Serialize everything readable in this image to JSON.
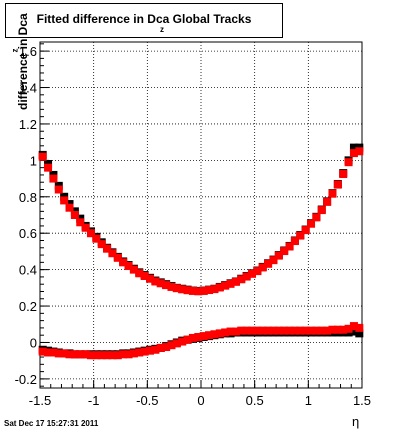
{
  "header": {
    "title": "Fitted difference in Dca",
    "title_subscript": "z",
    "title_suffix": "Global Tracks"
  },
  "footer": {
    "timestamp": "Sat Dec 17 15:27:31 2011"
  },
  "chart_data": {
    "type": "scatter",
    "xlabel": "η",
    "ylabel": "difference in Dca",
    "ylabel_subscript": "z",
    "xlim": [
      -1.5,
      1.5
    ],
    "ylim": [
      -0.25,
      1.65
    ],
    "x_ticks": [
      -1.5,
      -1,
      -0.5,
      0,
      0.5,
      1,
      1.5
    ],
    "y_ticks": [
      -0.2,
      0,
      0.2,
      0.4,
      0.6,
      0.8,
      1,
      1.2,
      1.4,
      1.6
    ],
    "x_tick_labels": [
      "-1.5",
      "-1",
      "-0.5",
      "0",
      "0.5",
      "1",
      "1.5"
    ],
    "y_tick_labels": [
      "-0.2",
      "0",
      "0.2",
      "0.4",
      "0.6",
      "0.8",
      "1",
      "1.2",
      "1.4",
      "1.6"
    ],
    "grid": true,
    "colors": {
      "black_series": "#000000",
      "red_series": "#ff0000"
    },
    "series": [
      {
        "color": "black",
        "x": [
          -1.475,
          -1.425,
          -1.375,
          -1.325,
          -1.275,
          -1.225,
          -1.175,
          -1.125,
          -1.075,
          -1.025,
          -0.975,
          -0.925,
          -0.875,
          -0.825,
          -0.775,
          -0.725,
          -0.675,
          -0.625,
          -0.575,
          -0.525,
          -0.475,
          -0.425,
          -0.375,
          -0.325,
          -0.275,
          -0.225,
          -0.175,
          -0.125,
          -0.075,
          -0.025,
          0.025,
          0.075,
          0.125,
          0.175,
          0.225,
          0.275,
          0.325,
          0.375,
          0.425,
          0.475,
          0.525,
          0.575,
          0.625,
          0.675,
          0.725,
          0.775,
          0.825,
          0.875,
          0.925,
          0.975,
          1.025,
          1.075,
          1.125,
          1.175,
          1.225,
          1.275,
          1.325,
          1.375,
          1.425,
          1.475
        ],
        "y": [
          1.03,
          0.98,
          0.92,
          0.86,
          0.8,
          0.76,
          0.72,
          0.68,
          0.64,
          0.61,
          0.58,
          0.55,
          0.52,
          0.495,
          0.47,
          0.445,
          0.425,
          0.405,
          0.385,
          0.37,
          0.355,
          0.34,
          0.33,
          0.32,
          0.31,
          0.3,
          0.295,
          0.29,
          0.285,
          0.283,
          0.285,
          0.29,
          0.295,
          0.305,
          0.315,
          0.325,
          0.335,
          0.35,
          0.365,
          0.38,
          0.395,
          0.415,
          0.435,
          0.455,
          0.48,
          0.505,
          0.53,
          0.56,
          0.59,
          0.62,
          0.655,
          0.69,
          0.73,
          0.775,
          0.82,
          0.87,
          0.93,
          1.0,
          1.07,
          1.07
        ],
        "y2": [
          -0.04,
          -0.045,
          -0.05,
          -0.055,
          -0.06,
          -0.06,
          -0.065,
          -0.065,
          -0.065,
          -0.065,
          -0.065,
          -0.065,
          -0.065,
          -0.065,
          -0.065,
          -0.06,
          -0.06,
          -0.055,
          -0.05,
          -0.045,
          -0.04,
          -0.035,
          -0.03,
          -0.02,
          -0.01,
          0.0,
          0.01,
          0.015,
          0.02,
          0.025,
          0.03,
          0.035,
          0.04,
          0.045,
          0.05,
          0.05,
          0.055,
          0.055,
          0.055,
          0.055,
          0.055,
          0.055,
          0.055,
          0.055,
          0.055,
          0.055,
          0.055,
          0.055,
          0.055,
          0.055,
          0.055,
          0.055,
          0.055,
          0.055,
          0.055,
          0.055,
          0.055,
          0.055,
          0.06,
          0.05
        ]
      },
      {
        "color": "red",
        "x": [
          -1.475,
          -1.425,
          -1.375,
          -1.325,
          -1.275,
          -1.225,
          -1.175,
          -1.125,
          -1.075,
          -1.025,
          -0.975,
          -0.925,
          -0.875,
          -0.825,
          -0.775,
          -0.725,
          -0.675,
          -0.625,
          -0.575,
          -0.525,
          -0.475,
          -0.425,
          -0.375,
          -0.325,
          -0.275,
          -0.225,
          -0.175,
          -0.125,
          -0.075,
          -0.025,
          0.025,
          0.075,
          0.125,
          0.175,
          0.225,
          0.275,
          0.325,
          0.375,
          0.425,
          0.475,
          0.525,
          0.575,
          0.625,
          0.675,
          0.725,
          0.775,
          0.825,
          0.875,
          0.925,
          0.975,
          1.025,
          1.075,
          1.125,
          1.175,
          1.225,
          1.275,
          1.325,
          1.375,
          1.425,
          1.475
        ],
        "y": [
          1.02,
          0.96,
          0.9,
          0.84,
          0.78,
          0.74,
          0.7,
          0.66,
          0.63,
          0.6,
          0.57,
          0.54,
          0.515,
          0.49,
          0.465,
          0.44,
          0.42,
          0.4,
          0.38,
          0.365,
          0.35,
          0.335,
          0.325,
          0.315,
          0.305,
          0.298,
          0.292,
          0.287,
          0.283,
          0.281,
          0.283,
          0.288,
          0.293,
          0.302,
          0.312,
          0.322,
          0.333,
          0.347,
          0.362,
          0.377,
          0.392,
          0.412,
          0.432,
          0.452,
          0.477,
          0.502,
          0.527,
          0.557,
          0.587,
          0.617,
          0.652,
          0.687,
          0.727,
          0.772,
          0.817,
          0.867,
          0.925,
          0.99,
          1.04,
          1.05
        ],
        "y2": [
          -0.05,
          -0.055,
          -0.055,
          -0.06,
          -0.06,
          -0.065,
          -0.065,
          -0.065,
          -0.065,
          -0.07,
          -0.07,
          -0.07,
          -0.07,
          -0.07,
          -0.07,
          -0.065,
          -0.065,
          -0.06,
          -0.055,
          -0.05,
          -0.045,
          -0.04,
          -0.03,
          -0.025,
          -0.015,
          -0.005,
          0.005,
          0.015,
          0.025,
          0.03,
          0.035,
          0.04,
          0.045,
          0.05,
          0.055,
          0.06,
          0.06,
          0.065,
          0.065,
          0.065,
          0.065,
          0.065,
          0.065,
          0.065,
          0.065,
          0.065,
          0.065,
          0.065,
          0.065,
          0.065,
          0.065,
          0.065,
          0.065,
          0.065,
          0.07,
          0.07,
          0.07,
          0.075,
          0.09,
          0.08
        ]
      }
    ]
  }
}
